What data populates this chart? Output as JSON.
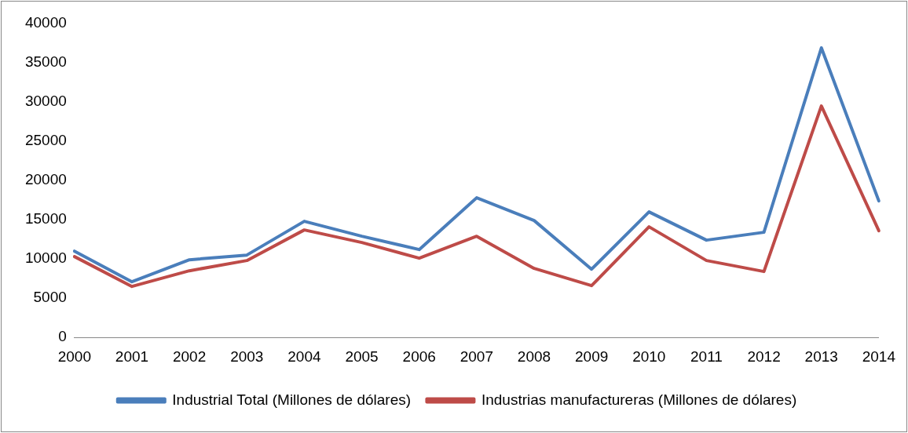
{
  "chart_data": {
    "type": "line",
    "categories": [
      "2000",
      "2001",
      "2002",
      "2003",
      "2004",
      "2005",
      "2006",
      "2007",
      "2008",
      "2009",
      "2010",
      "2011",
      "2012",
      "2013",
      "2014"
    ],
    "series": [
      {
        "name": "Industrial Total (Millones de dólares)",
        "color": "#4a7ebb",
        "values": [
          11000,
          7100,
          9900,
          10500,
          14800,
          12900,
          11200,
          17800,
          14900,
          8700,
          16000,
          12400,
          13400,
          36900,
          17400
        ]
      },
      {
        "name": "Industrias manufactureras (Millones de dólares)",
        "color": "#be4b48",
        "values": [
          10300,
          6500,
          8500,
          9800,
          13700,
          12100,
          10100,
          12900,
          8800,
          6600,
          14100,
          9800,
          8400,
          29500,
          13600
        ]
      }
    ],
    "ylim": [
      0,
      40000
    ],
    "yticks": [
      0,
      5000,
      10000,
      15000,
      20000,
      25000,
      30000,
      35000,
      40000
    ],
    "grid": false,
    "legend": "bottom",
    "marker": "none",
    "line_style": "solid"
  }
}
